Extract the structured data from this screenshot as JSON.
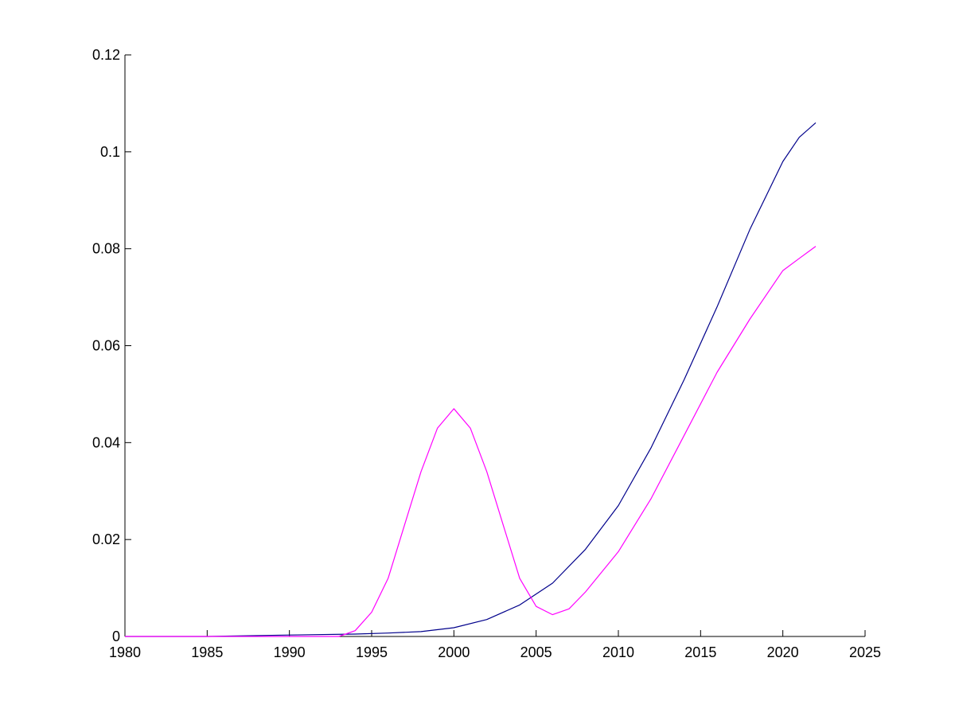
{
  "chart_data": {
    "type": "line",
    "title": "",
    "xlabel": "",
    "ylabel": "",
    "xlim": [
      1980,
      2025
    ],
    "ylim": [
      0,
      0.12
    ],
    "x_ticks": [
      1980,
      1985,
      1990,
      1995,
      2000,
      2005,
      2010,
      2015,
      2020,
      2025
    ],
    "x_tick_labels": [
      "1980",
      "1985",
      "1990",
      "1995",
      "2000",
      "2005",
      "2010",
      "2015",
      "2020",
      "2025"
    ],
    "y_ticks": [
      0,
      0.02,
      0.04,
      0.06,
      0.08,
      0.1,
      0.12
    ],
    "y_tick_labels": [
      "0",
      "0.02",
      "0.04",
      "0.06",
      "0.08",
      "0.1",
      "0.12"
    ],
    "grid": false,
    "series": [
      {
        "color": "#00008b",
        "x": [
          1980,
          1985,
          1990,
          1994,
          1996,
          1998,
          2000,
          2002,
          2004,
          2006,
          2008,
          2010,
          2012,
          2014,
          2016,
          2018,
          2020,
          2021,
          2022
        ],
        "y": [
          0,
          0,
          0.0003,
          0.0005,
          0.0007,
          0.001,
          0.0018,
          0.0035,
          0.0065,
          0.011,
          0.018,
          0.027,
          0.039,
          0.053,
          0.068,
          0.084,
          0.098,
          0.103,
          0.106
        ]
      },
      {
        "color": "#ff00ff",
        "x": [
          1980,
          1985,
          1990,
          1993,
          1994,
          1995,
          1996,
          1997,
          1998,
          1999,
          2000,
          2001,
          2002,
          2003,
          2004,
          2005,
          2006,
          2007,
          2008,
          2010,
          2012,
          2014,
          2016,
          2018,
          2020,
          2021,
          2022
        ],
        "y": [
          0,
          0,
          0,
          0,
          0.0012,
          0.005,
          0.012,
          0.023,
          0.034,
          0.043,
          0.047,
          0.043,
          0.034,
          0.023,
          0.012,
          0.0062,
          0.0045,
          0.0057,
          0.0092,
          0.0175,
          0.0285,
          0.0415,
          0.0545,
          0.0655,
          0.0755,
          0.078,
          0.0805
        ]
      }
    ]
  }
}
